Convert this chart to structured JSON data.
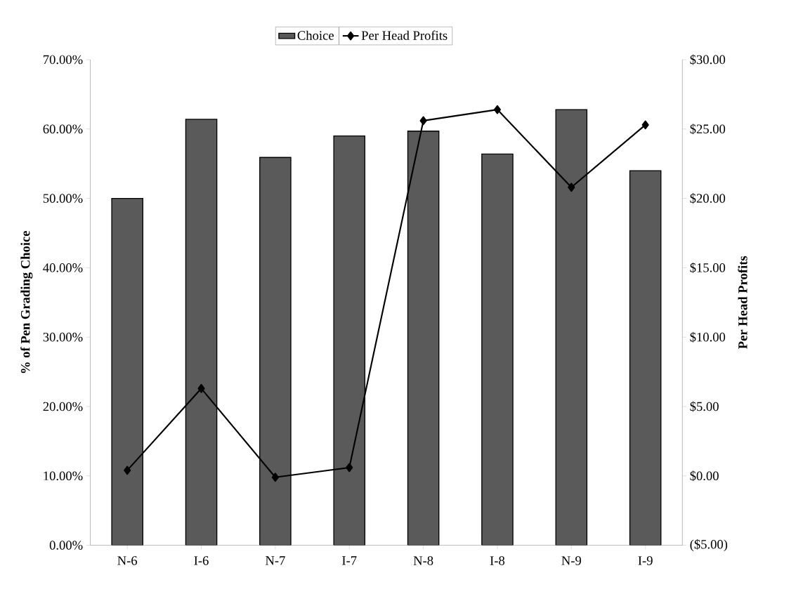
{
  "chart_data": {
    "type": "bar",
    "categories": [
      "N-6",
      "I-6",
      "N-7",
      "I-7",
      "N-8",
      "I-8",
      "N-9",
      "I-9"
    ],
    "ylabel": "% of Pen Grading Choice",
    "y2label": "Per Head Profits",
    "series": [
      {
        "name": "Choice",
        "color": "#5a5a5a",
        "values": [
          50.0,
          61.4,
          55.9,
          59.0,
          59.7,
          56.4,
          62.8,
          54.0
        ]
      },
      {
        "name": "Per Head Profits",
        "type": "line",
        "axis": "y2",
        "color": "#000000",
        "marker": "diamond",
        "values": [
          0.4,
          6.3,
          -0.1,
          0.6,
          25.6,
          26.4,
          20.8,
          25.3
        ]
      }
    ],
    "ylim": [
      0,
      70
    ],
    "yticks": [
      {
        "value": 0,
        "label": "0.00%"
      },
      {
        "value": 10,
        "label": "10.00%"
      },
      {
        "value": 20,
        "label": "20.00%"
      },
      {
        "value": 30,
        "label": "30.00%"
      },
      {
        "value": 40,
        "label": "40.00%"
      },
      {
        "value": 50,
        "label": "50.00%"
      },
      {
        "value": 60,
        "label": "60.00%"
      },
      {
        "value": 70,
        "label": "70.00%"
      }
    ],
    "y2lim": [
      -5,
      30
    ],
    "y2ticks": [
      {
        "value": -5,
        "label": "($5.00)"
      },
      {
        "value": 0,
        "label": "$0.00"
      },
      {
        "value": 5,
        "label": "$5.00"
      },
      {
        "value": 10,
        "label": "$10.00"
      },
      {
        "value": 15,
        "label": "$15.00"
      },
      {
        "value": 20,
        "label": "$20.00"
      },
      {
        "value": 25,
        "label": "$25.00"
      },
      {
        "value": 30,
        "label": "$30.00"
      }
    ],
    "legend": "top",
    "grid": false
  }
}
